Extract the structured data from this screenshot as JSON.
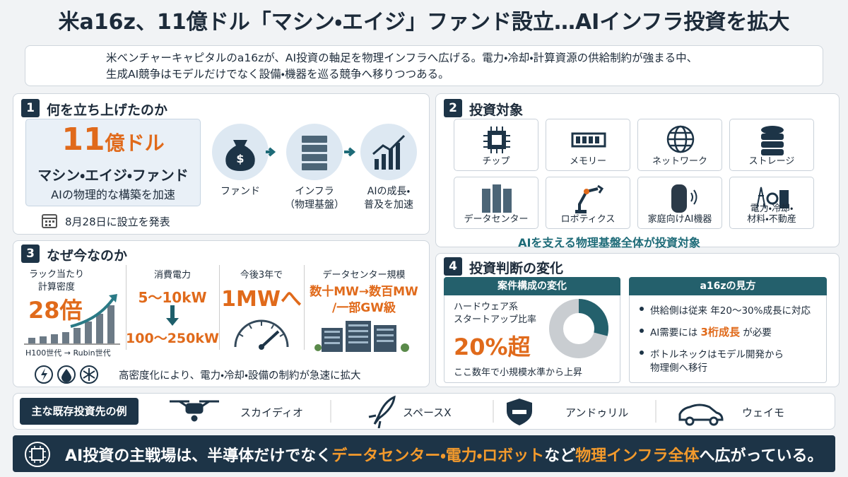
{
  "header": {
    "title": "米a16z、11億ドル「マシン・エイジ」ファンド設立…AIインフラ投資を拡大",
    "lead": [
      "米ベンチャーキャピタルのa16zが、AI投資の軸足を物理インフラへ広げる。電力・冷却・計算資源の供給制約が強まる中、",
      "生成AI競争はモデルだけでなく設備・機器を巡る競争へ移りつつある。"
    ]
  },
  "section1": {
    "number": "1",
    "title": "何を立ち上げたのか",
    "amount": "11",
    "amount_unit": "億ドル",
    "fund_name": "マシン・エイジ・ファンド",
    "fund_goal": "AIの物理的な構築を加速",
    "date_note": "8月28日に設立を発表",
    "flow": [
      [
        "ファンド"
      ],
      [
        "インフラ",
        "（物理基盤）"
      ],
      [
        "AIの成長・",
        "普及を加速"
      ]
    ]
  },
  "section2": {
    "number": "2",
    "title": "投資対象",
    "items": [
      [
        "チップ"
      ],
      [
        "メモリー"
      ],
      [
        "ネットワーク"
      ],
      [
        "ストレージ"
      ],
      [
        "データセンター"
      ],
      [
        "ロボティクス"
      ],
      [
        "家庭向けAI機器"
      ],
      [
        "電力・冷却・",
        "材料・不動産"
      ]
    ],
    "footer": "AIを支える物理基盤全体が投資対象"
  },
  "section3": {
    "number": "3",
    "title": "なぜ今なのか",
    "density": {
      "label": [
        "ラック当たり",
        "計算密度"
      ],
      "value": "28倍",
      "caption": "H100世代 → Rubin世代"
    },
    "power": {
      "label": "消費電力",
      "from": "5〜10kW",
      "to": "100〜250kW"
    },
    "outlook": {
      "label": "今後3年で",
      "value": "1MWへ"
    },
    "scale": {
      "label": "データセンター規模",
      "value": [
        "数十MW→数百MW",
        "/一部GW級"
      ]
    },
    "footer": "高密度化により、電力・冷却・設備の制約が急速に拡大"
  },
  "section4": {
    "number": "4",
    "title": "投資判断の変化",
    "composition": {
      "header": "案件構成の変化",
      "label": [
        "ハードウェア系",
        "スタートアップ比率"
      ],
      "value": "20%超",
      "note": "ここ数年で小規模水準から上昇"
    },
    "view": {
      "header": "a16zの見方",
      "bullets": [
        [
          [
            {
              "text": "供給側は従来 年20〜30%成長に対応"
            }
          ]
        ],
        [
          [
            {
              "text": "AI需要には "
            },
            {
              "text": "3桁成長",
              "emphasis": true
            },
            {
              "text": " が必要"
            }
          ]
        ],
        [
          [
            {
              "text": "ボトルネックはモデル開発から"
            }
          ],
          [
            {
              "text": "物理側へ移行"
            }
          ]
        ]
      ]
    }
  },
  "examples": {
    "label": "主な既存投資先の例",
    "companies": [
      "スカイディオ",
      "スペースX",
      "アンドゥリル",
      "ウェイモ"
    ]
  },
  "banner": {
    "segments": [
      {
        "text": "AI投資の主戦場は、半導体だけでなく"
      },
      {
        "text": "データセンター・電力・ロボット",
        "emphasis": true
      },
      {
        "text": "など"
      },
      {
        "text": "物理インフラ全体",
        "emphasis": true
      },
      {
        "text": "へ広がっている。"
      }
    ]
  }
}
